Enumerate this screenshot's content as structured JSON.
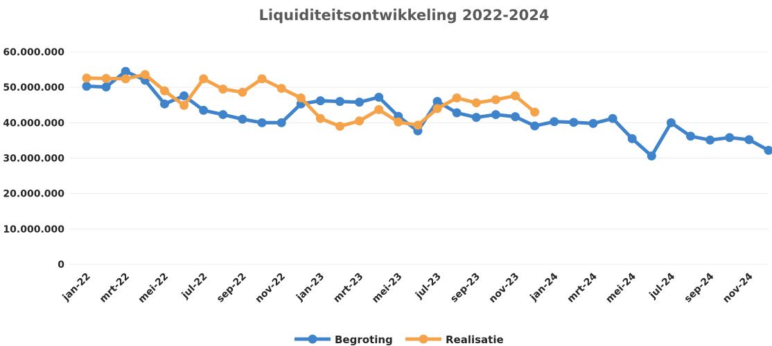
{
  "chart_data": {
    "type": "line",
    "title": "Liquiditeitsontwikkeling 2022-2024",
    "xlabel": "",
    "ylabel": "",
    "ylim": [
      0,
      60000000
    ],
    "yticks": [
      "60.000.000",
      "50.000.000",
      "40.000.000",
      "30.000.000",
      "20.000.000",
      "10.000.000",
      "0"
    ],
    "ytick_values": [
      60000000,
      50000000,
      40000000,
      30000000,
      20000000,
      10000000,
      0
    ],
    "xtick_labels": [
      "jan-22",
      "mrt-22",
      "mei-22",
      "jul-22",
      "sep-22",
      "nov-22",
      "jan-23",
      "mrt-23",
      "mei-23",
      "jul-23",
      "sep-23",
      "nov-23",
      "jan-24",
      "mrt-24",
      "mei-24",
      "jul-24",
      "sep-24",
      "nov-24"
    ],
    "x": [
      "jan-22",
      "feb-22",
      "mrt-22",
      "apr-22",
      "mei-22",
      "jun-22",
      "jul-22",
      "aug-22",
      "sep-22",
      "okt-22",
      "nov-22",
      "dec-22",
      "jan-23",
      "feb-23",
      "mrt-23",
      "apr-23",
      "mei-23",
      "jun-23",
      "jul-23",
      "aug-23",
      "sep-23",
      "okt-23",
      "nov-23",
      "dec-23",
      "jan-24",
      "feb-24",
      "mrt-24",
      "apr-24",
      "mei-24",
      "jun-24",
      "jul-24",
      "aug-24",
      "sep-24",
      "okt-24",
      "nov-24",
      "dec-24"
    ],
    "grid": true,
    "legend_position": "bottom",
    "series": [
      {
        "name": "Begroting",
        "color": "#3F84CB",
        "values": [
          50300000,
          50100000,
          54500000,
          52000000,
          45300000,
          47600000,
          43500000,
          42300000,
          41000000,
          40000000,
          40000000,
          45300000,
          46200000,
          46000000,
          45800000,
          47200000,
          41800000,
          37700000,
          46000000,
          42800000,
          41500000,
          42300000,
          41700000,
          39100000,
          40300000,
          40100000,
          39800000,
          41200000,
          35500000,
          30600000,
          40000000,
          36200000,
          35100000,
          35800000,
          35200000,
          32200000
        ]
      },
      {
        "name": "Realisatie",
        "color": "#F5A34B",
        "values": [
          52600000,
          52500000,
          52400000,
          53600000,
          49000000,
          44900000,
          52400000,
          49500000,
          48600000,
          52400000,
          49700000,
          47000000,
          41200000,
          39000000,
          40500000,
          43700000,
          40200000,
          39300000,
          44000000,
          47000000,
          45600000,
          46500000,
          47600000,
          43000000,
          null,
          null,
          null,
          null,
          null,
          null,
          null,
          null,
          null,
          null,
          null,
          null
        ]
      }
    ]
  }
}
